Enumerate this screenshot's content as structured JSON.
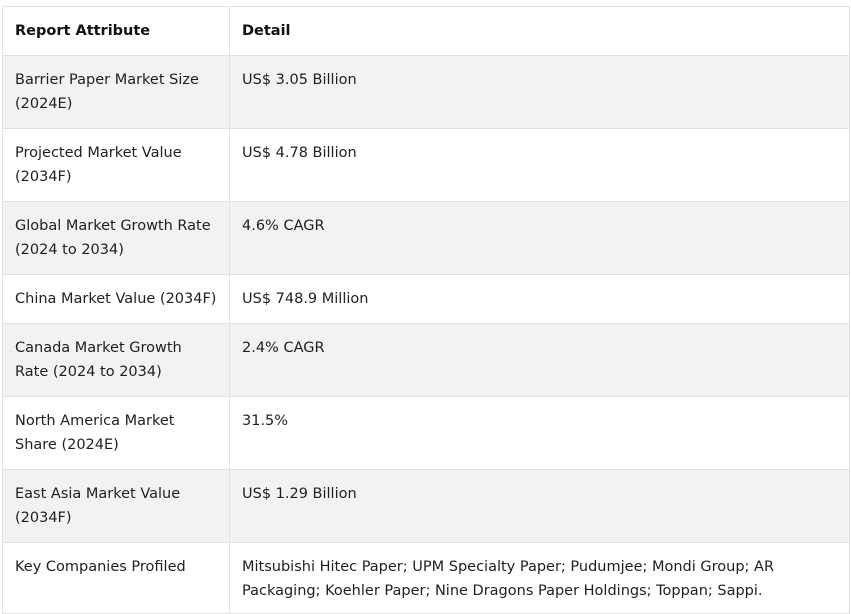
{
  "table": {
    "headers": [
      "Report Attribute",
      "Detail"
    ],
    "rows": [
      [
        "Barrier Paper Market Size (2024E)",
        "US$ 3.05 Billion"
      ],
      [
        "Projected Market Value (2034F)",
        "US$ 4.78 Billion"
      ],
      [
        "Global Market Growth Rate (2024 to 2034)",
        "4.6% CAGR"
      ],
      [
        "China Market Value (2034F)",
        "US$ 748.9 Million"
      ],
      [
        "Canada Market Growth Rate (2024 to 2034)",
        "2.4% CAGR"
      ],
      [
        "North America Market Share (2024E)",
        "31.5%"
      ],
      [
        "East Asia Market Value (2034F)",
        "US$ 1.29 Billion"
      ],
      [
        "Key Companies Profiled",
        "Mitsubishi Hitec Paper; UPM Specialty Paper; Pudumjee; Mondi Group; AR Packaging; Koehler Paper; Nine Dragons Paper Holdings; Toppan; Sappi."
      ]
    ]
  }
}
